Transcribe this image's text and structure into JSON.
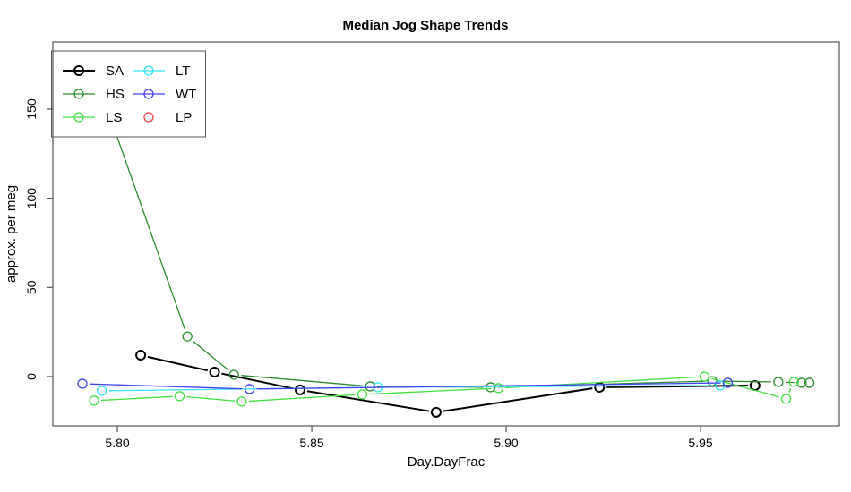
{
  "title": "Median Jog Shape Trends",
  "chart_data": {
    "type": "line",
    "title": "Median Jog Shape Trends",
    "xlabel": "Day.DayFrac",
    "ylabel": "approx. per meg",
    "xlim": [
      5.7834,
      5.9857
    ],
    "ylim": [
      -27.6,
      187.6
    ],
    "x_ticks": [
      5.8,
      5.85,
      5.9,
      5.95
    ],
    "x_tick_labels": [
      "5.80",
      "5.85",
      "5.90",
      "5.95"
    ],
    "y_ticks": [
      0,
      50,
      100,
      150
    ],
    "y_tick_labels": [
      "0",
      "50",
      "100",
      "150"
    ],
    "grid": false,
    "legend_position": "topleft",
    "marker": "open-circle",
    "series": [
      {
        "name": "SA",
        "color": "#000000",
        "line": true,
        "line_width": 2,
        "points": [
          [
            5.806,
            12
          ],
          [
            5.825,
            2.5
          ],
          [
            5.847,
            -7.5
          ],
          [
            5.882,
            -20
          ],
          [
            5.924,
            -6
          ],
          [
            5.964,
            -5
          ]
        ]
      },
      {
        "name": "HS",
        "color": "#2E8B2E",
        "line": true,
        "line_width": 1.3,
        "points": [
          [
            5.795,
            165
          ],
          [
            5.818,
            22.5
          ],
          [
            5.83,
            1
          ],
          [
            5.865,
            -5.5
          ],
          [
            5.896,
            -6
          ],
          [
            5.953,
            -2.5
          ],
          [
            5.97,
            -3
          ],
          [
            5.976,
            -3.5
          ],
          [
            5.978,
            -3.5
          ]
        ]
      },
      {
        "name": "LS",
        "color": "#43DF43",
        "line": true,
        "line_width": 1.3,
        "points": [
          [
            5.794,
            -13.5
          ],
          [
            5.816,
            -11
          ],
          [
            5.832,
            -14
          ],
          [
            5.863,
            -10
          ],
          [
            5.898,
            -6.5
          ],
          [
            5.951,
            0
          ],
          [
            5.972,
            -12.5
          ],
          [
            5.974,
            -3
          ]
        ]
      },
      {
        "name": "LT",
        "color": "#35E5F2",
        "line": true,
        "line_width": 1.3,
        "points": [
          [
            5.796,
            -8
          ],
          [
            5.867,
            -6
          ],
          [
            5.955,
            -5
          ]
        ]
      },
      {
        "name": "WT",
        "color": "#4343F0",
        "line": true,
        "line_width": 1.3,
        "points": [
          [
            5.791,
            -4
          ],
          [
            5.834,
            -7
          ],
          [
            5.957,
            -3.5
          ]
        ]
      },
      {
        "name": "LP",
        "color": "#F04343",
        "line": false,
        "line_width": 1.3,
        "points": []
      }
    ]
  }
}
